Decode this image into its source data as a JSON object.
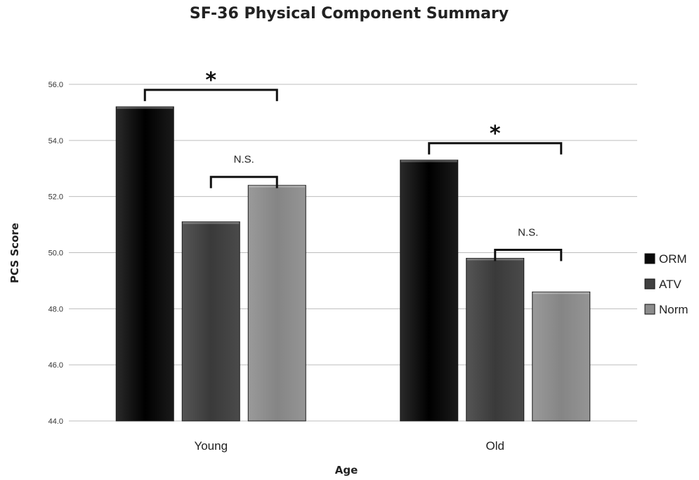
{
  "chart_data": {
    "type": "bar",
    "title": "SF-36 Physical Component Summary",
    "xlabel": "Age",
    "ylabel": "PCS Score",
    "categories": [
      "Young",
      "Old"
    ],
    "series": [
      {
        "name": "ORM",
        "values": [
          55.2,
          53.3
        ],
        "color": "#0a0a0a"
      },
      {
        "name": "ATV",
        "values": [
          51.1,
          49.8
        ],
        "color": "#404040"
      },
      {
        "name": "Norm",
        "values": [
          52.4,
          48.6
        ],
        "color": "#8c8c8c"
      }
    ],
    "ylim": [
      44.0,
      56.0
    ],
    "yticks": [
      "44.0",
      "46.0",
      "48.0",
      "50.0",
      "52.0",
      "54.0",
      "56.0"
    ],
    "grid": true,
    "legend": "right",
    "annotations": [
      {
        "label": "*",
        "category": 0,
        "from_series": 0,
        "to_series": 2
      },
      {
        "label": "N.S.",
        "category": 0,
        "from_series": 1,
        "to_series": 2
      },
      {
        "label": "*",
        "category": 1,
        "from_series": 0,
        "to_series": 2
      },
      {
        "label": "N.S.",
        "category": 1,
        "from_series": 1,
        "to_series": 2
      }
    ]
  }
}
